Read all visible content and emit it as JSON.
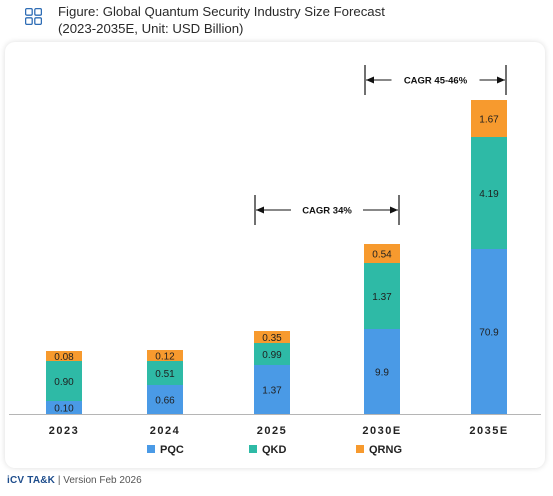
{
  "header": {
    "title_line1": "Figure: Global Quantum Security Industry Size Forecast",
    "title_line2": "(2023-2035E, Unit: USD Billion)",
    "icon": "grid-icon"
  },
  "footer": {
    "brand": "iCV TA&K",
    "version": "| Version Feb 2026"
  },
  "colors": {
    "PQC": "#4a9ae6",
    "QKD": "#2ebaa6",
    "QRNG": "#f79a2e",
    "text": "#222222"
  },
  "chart_data": {
    "type": "bar",
    "stacked": true,
    "title": "Global Quantum Security Industry Size Forecast",
    "categories": [
      "2023",
      "2024",
      "2025",
      "2030E",
      "2035E"
    ],
    "series": [
      {
        "name": "PQC",
        "values": [
          0.1,
          0.66,
          1.37,
          9.9,
          70.9
        ],
        "labels": [
          "0.10",
          "0.66",
          "1.37",
          "9.9",
          "70.9"
        ]
      },
      {
        "name": "QKD",
        "values": [
          0.9,
          0.51,
          0.99,
          1.37,
          4.19
        ],
        "labels": [
          "0.90",
          "0.51",
          "0.99",
          "1.37",
          "4.19"
        ]
      },
      {
        "name": "QRNG",
        "values": [
          0.08,
          0.12,
          0.35,
          0.54,
          1.67
        ],
        "labels": [
          "0.08",
          "0.12",
          "0.35",
          "0.54",
          "1.67"
        ]
      }
    ],
    "annotations": [
      {
        "text": "CAGR 34%",
        "from": "2025",
        "to": "2030E"
      },
      {
        "text": "CAGR 45-46%",
        "from": "2030E",
        "to": "2035E"
      }
    ],
    "legend": {
      "position": "bottom",
      "entries": [
        "PQC",
        "QKD",
        "QRNG"
      ]
    },
    "grid": false,
    "note": "Bar segment heights are not drawn to scale"
  }
}
